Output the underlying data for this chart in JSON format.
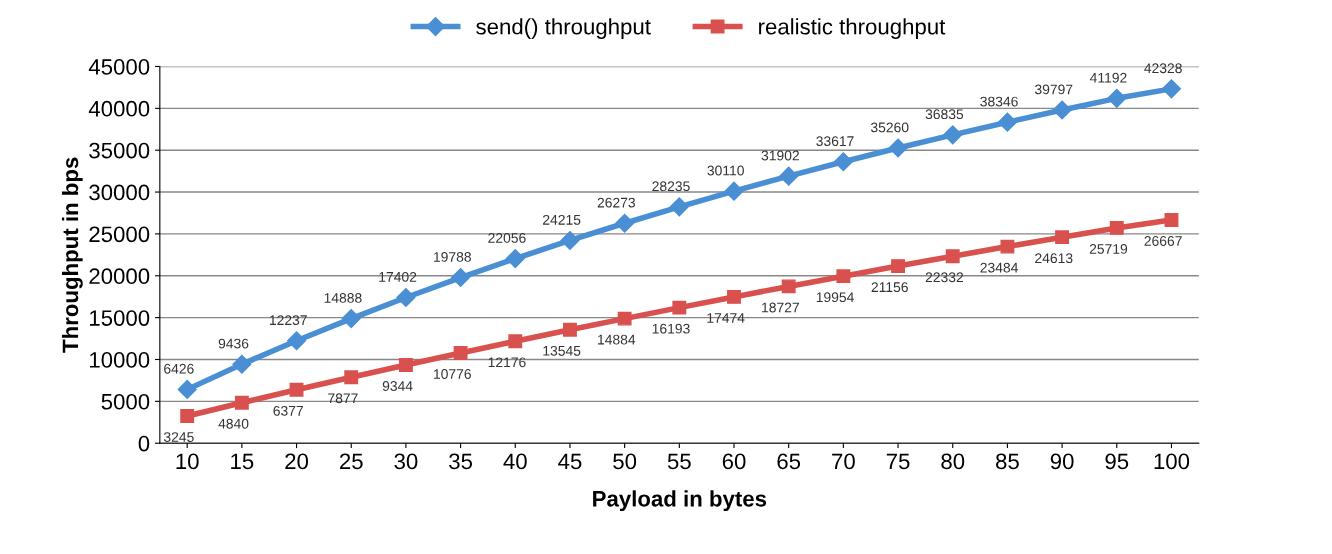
{
  "chart_data": {
    "type": "line",
    "xlabel": "Payload in bytes",
    "ylabel": "Throughput in bps",
    "categories": [
      "10",
      "15",
      "20",
      "25",
      "30",
      "35",
      "40",
      "45",
      "50",
      "55",
      "60",
      "65",
      "70",
      "75",
      "80",
      "85",
      "90",
      "95",
      "100"
    ],
    "series": [
      {
        "name": "send() throughput",
        "color": "#4a8fd4",
        "marker": "diamond",
        "values": [
          6426,
          9436,
          12237,
          14888,
          17402,
          19788,
          22056,
          24215,
          26273,
          28235,
          30110,
          31902,
          33617,
          35260,
          36835,
          38346,
          39797,
          41192,
          42328
        ]
      },
      {
        "name": "realistic throughput",
        "color": "#d9514e",
        "marker": "square",
        "values": [
          3245,
          4840,
          6377,
          7877,
          9344,
          10776,
          12176,
          13545,
          14884,
          16193,
          17474,
          18727,
          19954,
          21156,
          22332,
          23484,
          24613,
          25719,
          26667
        ]
      }
    ],
    "ylim": [
      0,
      45000
    ],
    "yticks": [
      0,
      5000,
      10000,
      15000,
      20000,
      25000,
      30000,
      35000,
      40000,
      45000
    ],
    "grid": "y",
    "legend": "top",
    "data_labels": true,
    "line_style": "solid"
  }
}
